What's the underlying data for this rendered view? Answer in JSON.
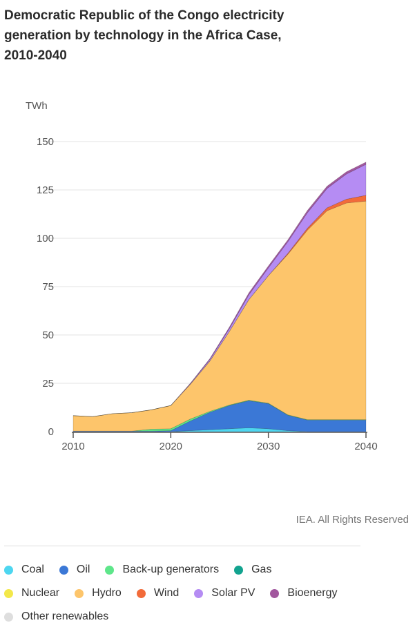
{
  "title": "Democratic Republic of the Congo electricity generation by technology in the Africa Case, 2010-2040",
  "unit": "TWh",
  "credit": "IEA. All Rights Reserved",
  "chart_data": {
    "type": "area",
    "stacked": true,
    "x": [
      2010,
      2012,
      2014,
      2016,
      2018,
      2020,
      2022,
      2024,
      2026,
      2028,
      2030,
      2032,
      2034,
      2036,
      2038,
      2040
    ],
    "xticks": [
      "2010",
      "2020",
      "2030",
      "2040"
    ],
    "yticks": [
      "0",
      "25",
      "50",
      "75",
      "100",
      "125",
      "150"
    ],
    "ylim": [
      0,
      150
    ],
    "xlim": [
      2010,
      2040
    ],
    "grid": true,
    "legend_position": "bottom",
    "series": [
      {
        "name": "Coal",
        "color": "#4dd6f0",
        "values": [
          0,
          0,
          0,
          0,
          0,
          0,
          0.5,
          1,
          1.5,
          2,
          1.5,
          0.5,
          0,
          0,
          0,
          0
        ]
      },
      {
        "name": "Oil",
        "color": "#3b78d6",
        "values": [
          0.3,
          0.3,
          0.3,
          0.3,
          0.3,
          0.5,
          5,
          9,
          12,
          14,
          13,
          8,
          6,
          6,
          6,
          6
        ]
      },
      {
        "name": "Back-up generators",
        "color": "#5ee68a",
        "values": [
          0,
          0,
          0,
          0,
          1,
          1,
          1,
          0.5,
          0.3,
          0.3,
          0.2,
          0.2,
          0.2,
          0.2,
          0.2,
          0.2
        ]
      },
      {
        "name": "Gas",
        "color": "#12a38f",
        "values": [
          0,
          0,
          0,
          0,
          0,
          0,
          0,
          0,
          0,
          0,
          0,
          0,
          0,
          0,
          0,
          0
        ]
      },
      {
        "name": "Nuclear",
        "color": "#f3e84a",
        "values": [
          0,
          0,
          0,
          0,
          0,
          0,
          0,
          0,
          0,
          0,
          0,
          0,
          0,
          0,
          0,
          0
        ]
      },
      {
        "name": "Hydro",
        "color": "#fdc56b",
        "values": [
          8,
          7.5,
          9,
          9.5,
          10,
          12,
          18,
          26,
          38,
          52,
          66,
          83,
          98,
          108,
          112,
          113
        ]
      },
      {
        "name": "Wind",
        "color": "#f26b3a",
        "values": [
          0,
          0,
          0,
          0,
          0,
          0,
          0,
          0,
          0,
          0,
          0,
          0.5,
          1,
          1.5,
          2,
          3
        ]
      },
      {
        "name": "Solar PV",
        "color": "#b58cf3",
        "values": [
          0,
          0,
          0,
          0,
          0,
          0,
          0.3,
          0.8,
          1.5,
          2.5,
          4,
          6,
          8,
          10,
          13,
          16
        ]
      },
      {
        "name": "Bioenergy",
        "color": "#a2579e",
        "values": [
          0,
          0,
          0,
          0,
          0,
          0,
          0.2,
          0.5,
          0.7,
          1,
          1,
          1,
          1.2,
          1.2,
          1.2,
          1.2
        ]
      },
      {
        "name": "Other renewables",
        "color": "#dedede",
        "values": [
          0,
          0,
          0,
          0,
          0,
          0,
          0,
          0,
          0,
          0,
          0,
          0,
          0,
          0,
          0,
          0
        ]
      }
    ]
  },
  "legend": {
    "rows": [
      [
        "Coal",
        "Oil",
        "Back-up generators",
        "Gas"
      ],
      [
        "Nuclear",
        "Hydro",
        "Wind",
        "Solar PV",
        "Bioenergy"
      ],
      [
        "Other renewables"
      ]
    ]
  }
}
